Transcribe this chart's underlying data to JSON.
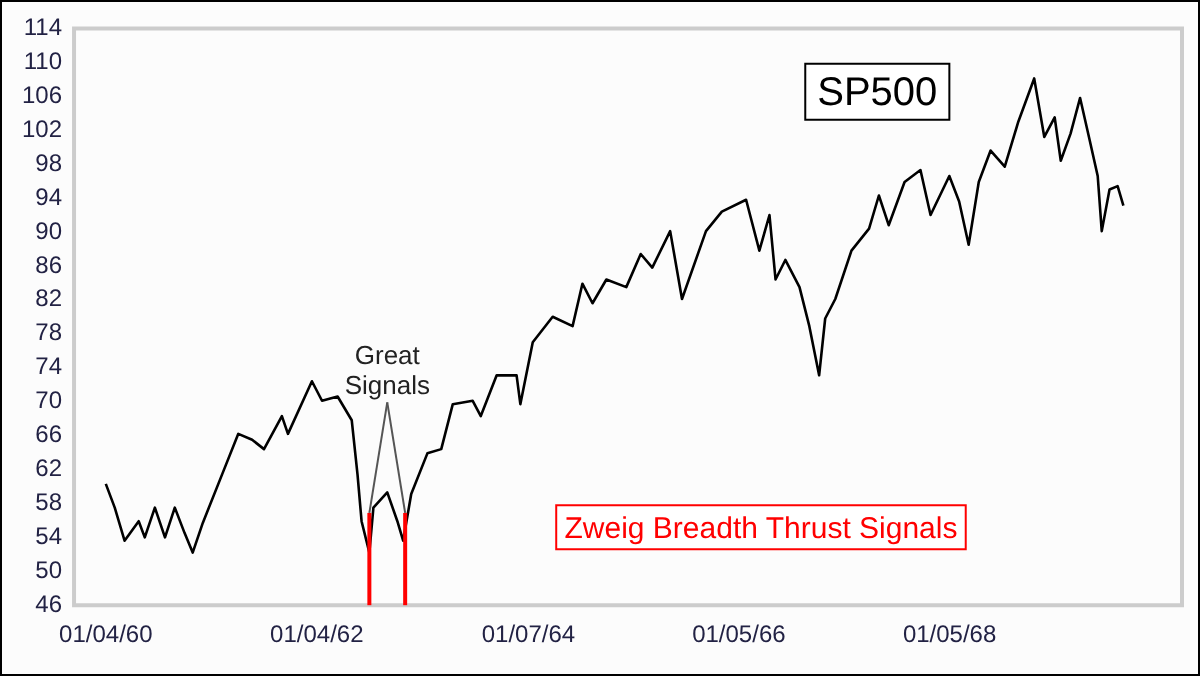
{
  "chart_data": {
    "type": "line",
    "title": "SP500",
    "color": "#000000",
    "x": [
      "1960-01-04",
      "1960-02-04",
      "1960-03-09",
      "1960-04-27",
      "1960-05-18",
      "1960-06-22",
      "1960-07-27",
      "1960-08-30",
      "1960-10-03",
      "1960-10-31",
      "1960-12-05",
      "1961-02-12",
      "1961-04-07",
      "1961-05-25",
      "1961-07-05",
      "1961-09-05",
      "1961-09-26",
      "1961-12-18",
      "1962-01-22",
      "1962-03-17",
      "1962-05-05",
      "1962-05-25",
      "1962-06-08",
      "1962-07-05",
      "1962-07-19",
      "1962-09-05",
      "1962-10-10",
      "1962-10-30",
      "1962-11-27",
      "1963-01-22",
      "1963-03-11",
      "1963-04-20",
      "1963-06-28",
      "1963-07-26",
      "1963-09-19",
      "1963-11-27",
      "1963-12-10",
      "1964-01-22",
      "1964-03-31",
      "1964-06-08",
      "1964-07-12",
      "1964-08-16",
      "1964-10-03",
      "1964-12-11",
      "1965-01-30",
      "1965-03-11",
      "1965-05-12",
      "1965-06-22",
      "1965-09-13",
      "1965-11-07",
      "1966-01-30",
      "1966-03-17",
      "1966-04-21",
      "1966-05-12",
      "1966-06-15",
      "1966-08-03",
      "1966-09-06",
      "1966-10-10",
      "1966-10-31",
      "1966-12-05",
      "1967-01-30",
      "1967-04-01",
      "1967-05-05",
      "1967-06-08",
      "1967-08-02",
      "1967-09-26",
      "1967-10-31",
      "1968-01-04",
      "1968-02-07",
      "1968-03-11",
      "1968-04-15",
      "1968-05-26",
      "1968-07-14",
      "1968-08-30",
      "1968-10-24",
      "1968-11-28",
      "1969-01-03",
      "1969-01-24",
      "1969-02-27",
      "1969-04-01",
      "1969-05-05",
      "1969-06-01",
      "1969-06-15",
      "1969-07-12",
      "1969-08-09",
      "1969-08-29"
    ],
    "values": [
      60.3,
      57.5,
      53.6,
      55.9,
      54,
      57.5,
      54,
      57.5,
      54.5,
      52.2,
      55.7,
      61.6,
      66.2,
      65.5,
      64.4,
      68.3,
      66.2,
      72.4,
      70.1,
      70.6,
      67.8,
      61.4,
      55.9,
      52.2,
      57.5,
      59.3,
      55.9,
      53.6,
      59.1,
      63.9,
      64.4,
      69.7,
      70.1,
      68.3,
      73.1,
      73.1,
      69.7,
      77,
      80,
      78.9,
      83.9,
      81.6,
      84.4,
      83.5,
      87.4,
      85.8,
      90.1,
      82.1,
      90.1,
      92.4,
      93.8,
      87.8,
      92,
      84.4,
      86.7,
      83.5,
      78.9,
      73.1,
      79.8,
      82.1,
      87.8,
      90.4,
      94.3,
      90.8,
      95.9,
      97.3,
      92,
      96.6,
      93.6,
      88.5,
      95.9,
      99.6,
      97.7,
      103,
      108.1,
      101.2,
      103.5,
      98.4,
      101.6,
      105.8,
      100.7,
      96.6,
      90.1,
      95,
      95.4,
      93.1
    ],
    "xlim": [
      "1959-09-16",
      "1970-03-20"
    ],
    "xticks": [
      {
        "value": "1960-01-04",
        "label": "01/04/60"
      },
      {
        "value": "1962-01-04",
        "label": "01/04/62"
      },
      {
        "value": "1964-01-07",
        "label": "01/07/64"
      },
      {
        "value": "1966-01-05",
        "label": "01/05/66"
      },
      {
        "value": "1968-01-05",
        "label": "01/05/68"
      }
    ],
    "ylim": [
      46,
      114
    ],
    "yticks": [
      46,
      50,
      54,
      58,
      62,
      66,
      70,
      74,
      78,
      82,
      86,
      90,
      94,
      98,
      102,
      106,
      110,
      114
    ],
    "ref_lines": [
      {
        "axis": "x",
        "value": "1962-07-05",
        "color": "#ff0000"
      },
      {
        "axis": "x",
        "value": "1962-11-06",
        "color": "#ff0000"
      }
    ],
    "annotations": [
      {
        "text": "Great Signals",
        "x": "1962-07-05",
        "y": 57
      },
      "Zweig Breadth Thrust Signals"
    ]
  }
}
